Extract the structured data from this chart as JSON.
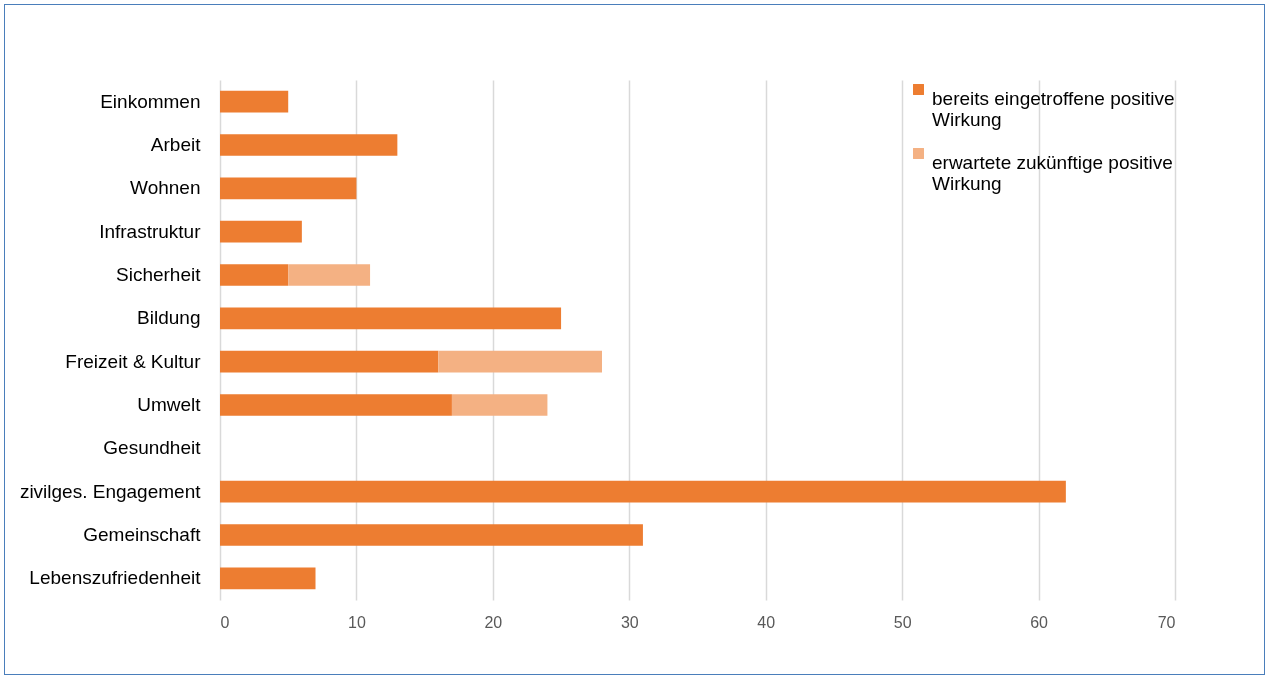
{
  "chart_data": {
    "type": "bar",
    "orientation": "horizontal",
    "stacked": true,
    "categories": [
      "Einkommen",
      "Arbeit",
      "Wohnen",
      "Infrastruktur",
      "Sicherheit",
      "Bildung",
      "Freizeit & Kultur",
      "Umwelt",
      "Gesundheit",
      "zivilges. Engagement",
      "Gemeinschaft",
      "Lebenszufriedenheit"
    ],
    "series": [
      {
        "name": "bereits eingetroffene positive Wirkung",
        "color": "#ed7d31",
        "values": [
          5,
          13,
          10,
          6,
          5,
          25,
          16,
          17,
          null,
          62,
          31,
          7
        ]
      },
      {
        "name": "erwartete zukünftige positive Wirkung",
        "color": "#f4b183",
        "values": [
          null,
          null,
          null,
          null,
          6,
          null,
          12,
          7,
          null,
          null,
          null,
          null
        ]
      }
    ],
    "xlim": [
      0,
      70
    ],
    "xticks": [
      0,
      10,
      20,
      30,
      40,
      50,
      60,
      70
    ],
    "grid": "x",
    "legend": "top right"
  }
}
